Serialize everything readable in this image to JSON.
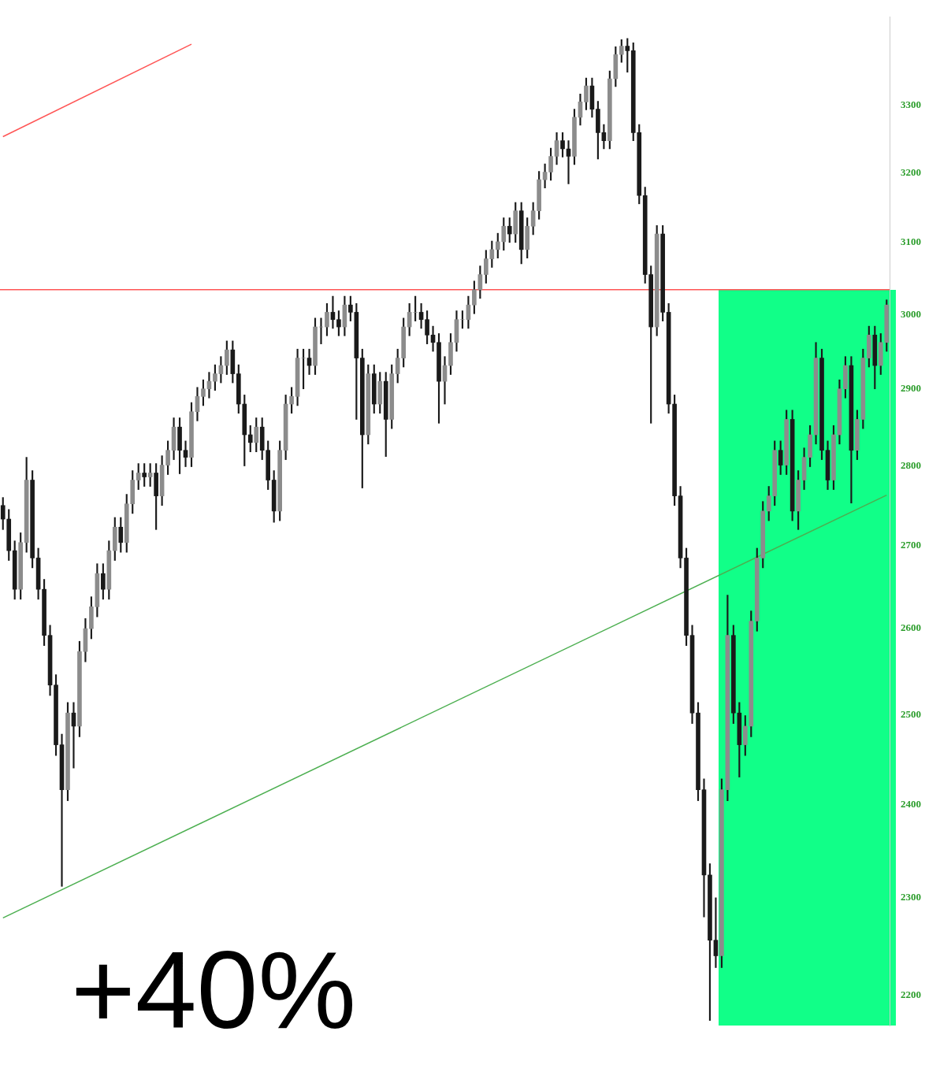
{
  "chart_data": {
    "type": "candlestick",
    "color": "#1a1a1a",
    "colors": [
      "#1a1a1a",
      "#1a1a1a",
      "#1a1a1a",
      "#8c8c8c",
      "#8c8c8c",
      "#1a1a1a",
      "#1a1a1a",
      "#1a1a1a",
      "#1a1a1a",
      "#1a1a1a",
      "#1a1a1a",
      "#8c8c8c",
      "#1a1a1a",
      "#8c8c8c",
      "#8c8c8c",
      "#8c8c8c",
      "#8c8c8c",
      "#1a1a1a",
      "#8c8c8c",
      "#8c8c8c",
      "#1a1a1a",
      "#8c8c8c",
      "#8c8c8c",
      "#8c8c8c",
      "#1a1a1a",
      "#8c8c8c",
      "#1a1a1a",
      "#8c8c8c",
      "#8c8c8c",
      "#8c8c8c",
      "#1a1a1a",
      "#1a1a1a",
      "#8c8c8c",
      "#8c8c8c",
      "#8c8c8c",
      "#8c8c8c",
      "#8c8c8c",
      "#8c8c8c",
      "#8c8c8c",
      "#1a1a1a",
      "#1a1a1a",
      "#1a1a1a",
      "#1a1a1a",
      "#8c8c8c",
      "#1a1a1a",
      "#1a1a1a",
      "#1a1a1a",
      "#8c8c8c",
      "#8c8c8c",
      "#8c8c8c",
      "#8c8c8c",
      "#8c8c8c",
      "#1a1a1a",
      "#8c8c8c",
      "#8c8c8c",
      "#8c8c8c",
      "#1a1a1a",
      "#1a1a1a",
      "#8c8c8c",
      "#1a1a1a",
      "#1a1a1a",
      "#1a1a1a",
      "#8c8c8c",
      "#1a1a1a",
      "#8c8c8c",
      "#1a1a1a",
      "#8c8c8c",
      "#8c8c8c",
      "#8c8c8c",
      "#8c8c8c",
      "#8c8c8c",
      "#1a1a1a",
      "#1a1a1a",
      "#1a1a1a",
      "#1a1a1a",
      "#8c8c8c",
      "#8c8c8c",
      "#8c8c8c",
      "#8c8c8c",
      "#8c8c8c",
      "#8c8c8c",
      "#8c8c8c",
      "#8c8c8c",
      "#8c8c8c",
      "#8c8c8c",
      "#8c8c8c",
      "#1a1a1a",
      "#8c8c8c",
      "#1a1a1a",
      "#8c8c8c",
      "#8c8c8c",
      "#8c8c8c",
      "#8c8c8c",
      "#8c8c8c",
      "#8c8c8c",
      "#1a1a1a",
      "#1a1a1a",
      "#8c8c8c",
      "#8c8c8c",
      "#8c8c8c",
      "#1a1a1a",
      "#1a1a1a",
      "#1a1a1a",
      "#8c8c8c",
      "#8c8c8c",
      "#8c8c8c",
      "#1a1a1a",
      "#1a1a1a",
      "#1a1a1a",
      "#1a1a1a",
      "#1a1a1a",
      "#8c8c8c",
      "#1a1a1a",
      "#1a1a1a",
      "#1a1a1a",
      "#1a1a1a",
      "#1a1a1a",
      "#1a1a1a",
      "#1a1a1a",
      "#1a1a1a",
      "#1a1a1a",
      "#1a1a1a",
      "#8c8c8c",
      "#8c8c8c",
      "#1a1a1a",
      "#1a1a1a",
      "#8c8c8c",
      "#8c8c8c",
      "#8c8c8c",
      "#8c8c8c",
      "#8c8c8c",
      "#8c8c8c",
      "#1a1a1a",
      "#8c8c8c",
      "#1a1a1a",
      "#8c8c8c",
      "#8c8c8c",
      "#8c8c8c",
      "#8c8c8c",
      "#1a1a1a",
      "#1a1a1a",
      "#8c8c8c",
      "#8c8c8c",
      "#8c8c8c",
      "#1a1a1a",
      "#8c8c8c",
      "#8c8c8c",
      "#8c8c8c",
      "#1a1a1a",
      "#8c8c8c",
      "#8c8c8c"
    ],
    "categories": [
      null,
      null,
      null,
      null,
      null,
      null,
      null,
      null,
      null,
      null,
      null,
      null,
      null,
      null,
      null,
      null,
      null,
      null,
      null,
      null,
      null,
      null,
      null,
      null,
      null,
      null,
      null,
      null,
      null,
      null,
      null,
      null,
      null,
      null,
      null,
      null,
      null,
      null,
      null,
      null,
      null,
      null,
      null,
      null,
      null,
      null,
      null,
      null,
      null,
      null,
      null,
      null,
      null,
      null,
      null,
      null,
      null,
      null,
      null,
      null,
      null,
      null,
      null,
      null,
      null,
      null,
      null,
      null,
      null,
      null,
      null,
      null,
      null,
      null,
      null,
      null,
      null,
      null,
      null,
      null,
      null,
      null,
      null,
      null,
      null,
      null,
      null,
      null,
      null,
      null,
      null,
      null,
      null,
      null,
      null,
      null,
      null,
      null,
      null,
      null,
      null,
      null,
      null,
      null,
      null,
      null,
      null,
      null,
      null,
      null,
      null,
      null,
      null,
      null,
      null,
      null,
      null,
      null,
      null,
      null,
      null,
      null,
      null,
      null,
      null,
      null,
      null,
      null,
      null,
      null,
      null,
      null,
      null,
      null,
      null,
      null,
      null,
      null,
      null,
      null,
      null,
      null,
      null,
      null,
      null,
      null,
      null,
      null,
      null,
      null,
      null
    ],
    "ohlc": [
      [
        2750,
        2760,
        2720,
        2733
      ],
      [
        2733,
        2745,
        2682,
        2694
      ],
      [
        2694,
        2706,
        2635,
        2647
      ],
      [
        2647,
        2716,
        2635,
        2704
      ],
      [
        2704,
        2811,
        2692,
        2782
      ],
      [
        2782,
        2794,
        2673,
        2685
      ],
      [
        2685,
        2697,
        2635,
        2647
      ],
      [
        2647,
        2659,
        2580,
        2592
      ],
      [
        2592,
        2604,
        2522,
        2534
      ],
      [
        2534,
        2546,
        2454,
        2466
      ],
      [
        2466,
        2478,
        2312,
        2416
      ],
      [
        2416,
        2514,
        2404,
        2502
      ],
      [
        2502,
        2514,
        2440,
        2487
      ],
      [
        2487,
        2585,
        2475,
        2573
      ],
      [
        2573,
        2612,
        2561,
        2600
      ],
      [
        2600,
        2638,
        2588,
        2626
      ],
      [
        2626,
        2678,
        2614,
        2666
      ],
      [
        2666,
        2678,
        2635,
        2647
      ],
      [
        2647,
        2706,
        2635,
        2694
      ],
      [
        2694,
        2735,
        2682,
        2723
      ],
      [
        2723,
        2735,
        2692,
        2704
      ],
      [
        2704,
        2764,
        2692,
        2752
      ],
      [
        2752,
        2794,
        2740,
        2782
      ],
      [
        2782,
        2803,
        2770,
        2791
      ],
      [
        2791,
        2803,
        2774,
        2786
      ],
      [
        2786,
        2803,
        2774,
        2791
      ],
      [
        2791,
        2803,
        2720,
        2762
      ],
      [
        2762,
        2813,
        2750,
        2801
      ],
      [
        2801,
        2832,
        2789,
        2820
      ],
      [
        2820,
        2862,
        2808,
        2850
      ],
      [
        2850,
        2862,
        2790,
        2820
      ],
      [
        2820,
        2832,
        2799,
        2811
      ],
      [
        2811,
        2882,
        2799,
        2870
      ],
      [
        2870,
        2902,
        2858,
        2890
      ],
      [
        2890,
        2912,
        2878,
        2900
      ],
      [
        2900,
        2922,
        2888,
        2910
      ],
      [
        2910,
        2932,
        2898,
        2920
      ],
      [
        2920,
        2943,
        2908,
        2931
      ],
      [
        2931,
        2964,
        2919,
        2952
      ],
      [
        2952,
        2964,
        2908,
        2920
      ],
      [
        2920,
        2932,
        2868,
        2880
      ],
      [
        2880,
        2892,
        2800,
        2840
      ],
      [
        2840,
        2852,
        2818,
        2830
      ],
      [
        2830,
        2862,
        2818,
        2850
      ],
      [
        2850,
        2862,
        2808,
        2820
      ],
      [
        2820,
        2832,
        2770,
        2782
      ],
      [
        2782,
        2794,
        2729,
        2743
      ],
      [
        2743,
        2832,
        2731,
        2820
      ],
      [
        2820,
        2892,
        2808,
        2880
      ],
      [
        2880,
        2902,
        2868,
        2890
      ],
      [
        2890,
        2953,
        2878,
        2941
      ],
      [
        2941,
        2953,
        2900,
        2941
      ],
      [
        2941,
        2953,
        2919,
        2931
      ],
      [
        2931,
        2995,
        2919,
        2983
      ],
      [
        2983,
        2995,
        2960,
        2983
      ],
      [
        2983,
        3015,
        2971,
        3003
      ],
      [
        3003,
        3025,
        2981,
        2993
      ],
      [
        2993,
        3005,
        2971,
        2983
      ],
      [
        2983,
        3025,
        2971,
        3013
      ],
      [
        3013,
        3025,
        2991,
        3003
      ],
      [
        3003,
        3015,
        2860,
        2941
      ],
      [
        2941,
        2953,
        2772,
        2840
      ],
      [
        2840,
        2932,
        2828,
        2920
      ],
      [
        2920,
        2932,
        2868,
        2880
      ],
      [
        2880,
        2922,
        2868,
        2910
      ],
      [
        2910,
        2922,
        2812,
        2860
      ],
      [
        2860,
        2932,
        2848,
        2920
      ],
      [
        2920,
        2953,
        2908,
        2941
      ],
      [
        2941,
        2995,
        2929,
        2983
      ],
      [
        2983,
        3015,
        2971,
        3003
      ],
      [
        3003,
        3025,
        2991,
        3003
      ],
      [
        3003,
        3015,
        2981,
        2993
      ],
      [
        2993,
        3005,
        2960,
        2972
      ],
      [
        2972,
        2984,
        2950,
        2962
      ],
      [
        2962,
        2974,
        2855,
        2910
      ],
      [
        2910,
        2943,
        2880,
        2931
      ],
      [
        2931,
        2974,
        2919,
        2962
      ],
      [
        2962,
        3005,
        2950,
        2993
      ],
      [
        2993,
        3005,
        2981,
        2993
      ],
      [
        2993,
        3025,
        2981,
        3013
      ],
      [
        3013,
        3046,
        3001,
        3034
      ],
      [
        3034,
        3067,
        3022,
        3055
      ],
      [
        3055,
        3089,
        3043,
        3077
      ],
      [
        3077,
        3102,
        3065,
        3090
      ],
      [
        3090,
        3113,
        3078,
        3101
      ],
      [
        3101,
        3135,
        3089,
        3123
      ],
      [
        3123,
        3135,
        3100,
        3112
      ],
      [
        3112,
        3157,
        3100,
        3145
      ],
      [
        3145,
        3157,
        3070,
        3090
      ],
      [
        3090,
        3135,
        3078,
        3123
      ],
      [
        3123,
        3157,
        3111,
        3145
      ],
      [
        3145,
        3202,
        3133,
        3190
      ],
      [
        3190,
        3213,
        3178,
        3201
      ],
      [
        3201,
        3236,
        3189,
        3224
      ],
      [
        3224,
        3259,
        3212,
        3247
      ],
      [
        3247,
        3259,
        3223,
        3235
      ],
      [
        3235,
        3247,
        3184,
        3224
      ],
      [
        3224,
        3294,
        3212,
        3282
      ],
      [
        3282,
        3317,
        3270,
        3305
      ],
      [
        3305,
        3341,
        3293,
        3329
      ],
      [
        3329,
        3341,
        3282,
        3294
      ],
      [
        3294,
        3306,
        3220,
        3259
      ],
      [
        3259,
        3271,
        3235,
        3247
      ],
      [
        3247,
        3352,
        3235,
        3340
      ],
      [
        3340,
        3389,
        3328,
        3377
      ],
      [
        3377,
        3400,
        3365,
        3390
      ],
      [
        3390,
        3402,
        3350,
        3383
      ],
      [
        3383,
        3395,
        3247,
        3259
      ],
      [
        3259,
        3271,
        3155,
        3167
      ],
      [
        3167,
        3179,
        3043,
        3055
      ],
      [
        3055,
        3067,
        2855,
        2983
      ],
      [
        2983,
        3124,
        2971,
        3112
      ],
      [
        3112,
        3124,
        2991,
        3003
      ],
      [
        3003,
        3015,
        2868,
        2880
      ],
      [
        2880,
        2892,
        2750,
        2762
      ],
      [
        2762,
        2774,
        2673,
        2685
      ],
      [
        2685,
        2697,
        2580,
        2592
      ],
      [
        2592,
        2604,
        2490,
        2502
      ],
      [
        2502,
        2514,
        2404,
        2416
      ],
      [
        2416,
        2428,
        2280,
        2324
      ],
      [
        2324,
        2336,
        2175,
        2256
      ],
      [
        2256,
        2300,
        2228,
        2240
      ],
      [
        2240,
        2428,
        2228,
        2416
      ],
      [
        2416,
        2640,
        2404,
        2592
      ],
      [
        2592,
        2604,
        2490,
        2502
      ],
      [
        2502,
        2514,
        2430,
        2466
      ],
      [
        2466,
        2499,
        2454,
        2487
      ],
      [
        2487,
        2621,
        2475,
        2609
      ],
      [
        2609,
        2697,
        2597,
        2685
      ],
      [
        2685,
        2755,
        2673,
        2743
      ],
      [
        2743,
        2774,
        2731,
        2762
      ],
      [
        2762,
        2832,
        2750,
        2820
      ],
      [
        2820,
        2832,
        2789,
        2801
      ],
      [
        2801,
        2872,
        2789,
        2860
      ],
      [
        2860,
        2872,
        2731,
        2743
      ],
      [
        2743,
        2794,
        2720,
        2782
      ],
      [
        2782,
        2823,
        2770,
        2811
      ],
      [
        2811,
        2852,
        2799,
        2840
      ],
      [
        2840,
        2962,
        2828,
        2941
      ],
      [
        2941,
        2953,
        2808,
        2820
      ],
      [
        2820,
        2832,
        2770,
        2782
      ],
      [
        2782,
        2852,
        2770,
        2840
      ],
      [
        2840,
        2912,
        2828,
        2900
      ],
      [
        2900,
        2943,
        2888,
        2931
      ],
      [
        2931,
        2943,
        2753,
        2820
      ],
      [
        2820,
        2872,
        2808,
        2860
      ],
      [
        2860,
        2953,
        2848,
        2941
      ],
      [
        2941,
        2984,
        2929,
        2972
      ],
      [
        2972,
        2984,
        2900,
        2931
      ],
      [
        2931,
        2974,
        2919,
        2962
      ],
      [
        2962,
        3020,
        2950,
        3013
      ]
    ],
    "series": [
      {
        "type": "line",
        "color": "#4caf50",
        "values": [
          2279,
          null,
          null,
          null,
          null,
          null,
          null,
          null,
          null,
          null,
          null,
          null,
          null,
          null,
          null,
          null,
          null,
          null,
          null,
          null,
          null,
          null,
          null,
          null,
          null,
          null,
          null,
          null,
          null,
          null,
          null,
          null,
          null,
          null,
          null,
          null,
          null,
          null,
          null,
          null,
          null,
          null,
          null,
          null,
          null,
          null,
          null,
          null,
          null,
          null,
          null,
          null,
          null,
          null,
          null,
          null,
          null,
          null,
          null,
          null,
          null,
          null,
          null,
          null,
          null,
          null,
          null,
          null,
          null,
          null,
          null,
          null,
          null,
          null,
          null,
          null,
          null,
          null,
          null,
          null,
          null,
          null,
          null,
          null,
          null,
          null,
          null,
          null,
          null,
          null,
          null,
          null,
          null,
          null,
          null,
          null,
          null,
          null,
          null,
          null,
          null,
          null,
          null,
          null,
          null,
          null,
          null,
          null,
          null,
          null,
          null,
          null,
          null,
          null,
          null,
          null,
          null,
          null,
          null,
          null,
          null,
          null,
          null,
          null,
          null,
          null,
          null,
          null,
          null,
          null,
          null,
          null,
          null,
          null,
          null,
          null,
          null,
          null,
          null,
          null,
          null,
          null,
          null,
          null,
          null,
          null,
          null,
          null,
          null,
          null,
          2763
        ]
      },
      {
        "type": "line",
        "color": "#ff5555",
        "values": [
          3253,
          null,
          null,
          null,
          null,
          null,
          null,
          null,
          null,
          null,
          null,
          null,
          null,
          null,
          null,
          null,
          null,
          null,
          null,
          null,
          null,
          null,
          null,
          null,
          null,
          null,
          null,
          null,
          null,
          null,
          null,
          null,
          3393,
          null,
          null,
          null,
          null,
          null,
          null,
          null,
          null,
          null,
          null,
          null,
          null,
          null,
          null,
          null,
          null,
          null,
          null,
          null,
          null,
          null,
          null,
          null,
          null,
          null,
          null,
          null,
          null,
          null,
          null,
          null,
          null,
          null,
          null,
          null,
          null,
          null,
          null,
          null,
          null,
          null,
          null,
          null,
          null,
          null,
          null,
          null,
          null,
          null,
          null,
          null,
          null,
          null,
          null,
          null,
          null,
          null,
          null,
          null,
          null,
          null,
          null,
          null,
          null,
          null,
          null,
          null,
          null,
          null,
          null,
          null,
          null,
          null,
          null,
          null,
          null,
          null,
          null,
          null,
          null,
          null,
          null,
          null,
          null,
          null,
          null,
          null,
          null,
          null,
          null,
          null,
          null,
          null,
          null,
          null,
          null,
          null,
          null,
          null,
          null,
          null,
          null,
          null,
          null,
          null,
          null,
          null,
          null,
          null,
          null,
          null,
          null,
          null,
          null,
          null,
          null,
          null,
          null
        ]
      }
    ],
    "ref_lines": [
      {
        "axis": "y",
        "value": 3034,
        "color": "#ff5555"
      }
    ],
    "annotations": [
      "+40%"
    ],
    "ylim": [
      2170,
      3435
    ],
    "log": "y",
    "yticks": [
      2200,
      2300,
      2400,
      2500,
      2600,
      2700,
      2800,
      2900,
      3000,
      3100,
      3200,
      3300
    ],
    "tick_labels": "y",
    "grid": false,
    "legend": false,
    "marker": "none"
  }
}
